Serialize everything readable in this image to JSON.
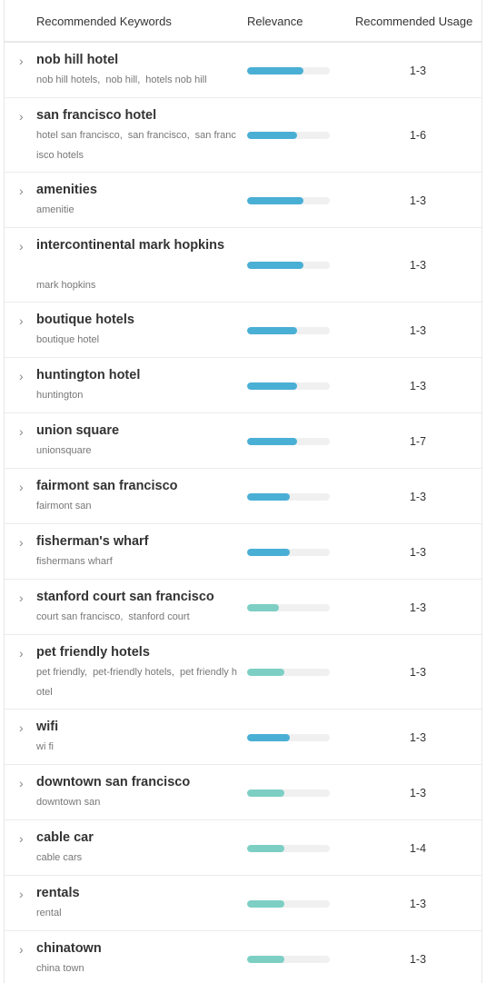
{
  "header": {
    "keywords_label": "Recommended Keywords",
    "relevance_label": "Relevance",
    "usage_label": "Recommended Usage"
  },
  "colors": {
    "bar_high": "#4aafd5",
    "bar_medium": "#7dcfc4",
    "bar_track": "#f0f0f0"
  },
  "rows": [
    {
      "keyword": "nob hill hotel",
      "variants": [
        "nob hill hotels",
        "nob hill",
        "hotels nob hill"
      ],
      "relevance": 0.68,
      "level": "high",
      "usage": "1-3"
    },
    {
      "keyword": "san francisco hotel",
      "variants": [
        "hotel san francisco",
        "san francisco",
        "san francisco hotels"
      ],
      "relevance": 0.6,
      "level": "high",
      "usage": "1-6"
    },
    {
      "keyword": "amenities",
      "variants": [
        "amenitie"
      ],
      "relevance": 0.68,
      "level": "high",
      "usage": "1-3"
    },
    {
      "keyword": "intercontinental mark hopkins",
      "variants": [
        "mark hopkins"
      ],
      "relevance": 0.68,
      "level": "high",
      "usage": "1-3"
    },
    {
      "keyword": "boutique hotels",
      "variants": [
        "boutique hotel"
      ],
      "relevance": 0.6,
      "level": "high",
      "usage": "1-3"
    },
    {
      "keyword": "huntington hotel",
      "variants": [
        "huntington"
      ],
      "relevance": 0.6,
      "level": "high",
      "usage": "1-3"
    },
    {
      "keyword": "union square",
      "variants": [
        "unionsquare"
      ],
      "relevance": 0.6,
      "level": "high",
      "usage": "1-7"
    },
    {
      "keyword": "fairmont san francisco",
      "variants": [
        "fairmont san"
      ],
      "relevance": 0.52,
      "level": "high",
      "usage": "1-3"
    },
    {
      "keyword": "fisherman's wharf",
      "variants": [
        "fishermans wharf"
      ],
      "relevance": 0.52,
      "level": "high",
      "usage": "1-3"
    },
    {
      "keyword": "stanford court san francisco",
      "variants": [
        "court san francisco",
        "stanford court"
      ],
      "relevance": 0.38,
      "level": "medium",
      "usage": "1-3"
    },
    {
      "keyword": "pet friendly hotels",
      "variants": [
        "pet friendly",
        "pet-friendly hotels",
        "pet friendly hotel"
      ],
      "relevance": 0.45,
      "level": "medium",
      "usage": "1-3"
    },
    {
      "keyword": "wifi",
      "variants": [
        "wi fi"
      ],
      "relevance": 0.52,
      "level": "high",
      "usage": "1-3"
    },
    {
      "keyword": "downtown san francisco",
      "variants": [
        "downtown san"
      ],
      "relevance": 0.45,
      "level": "medium",
      "usage": "1-3"
    },
    {
      "keyword": "cable car",
      "variants": [
        "cable cars"
      ],
      "relevance": 0.45,
      "level": "medium",
      "usage": "1-4"
    },
    {
      "keyword": "rentals",
      "variants": [
        "rental"
      ],
      "relevance": 0.45,
      "level": "medium",
      "usage": "1-3"
    },
    {
      "keyword": "chinatown",
      "variants": [
        "china town"
      ],
      "relevance": 0.45,
      "level": "medium",
      "usage": "1-3"
    }
  ]
}
